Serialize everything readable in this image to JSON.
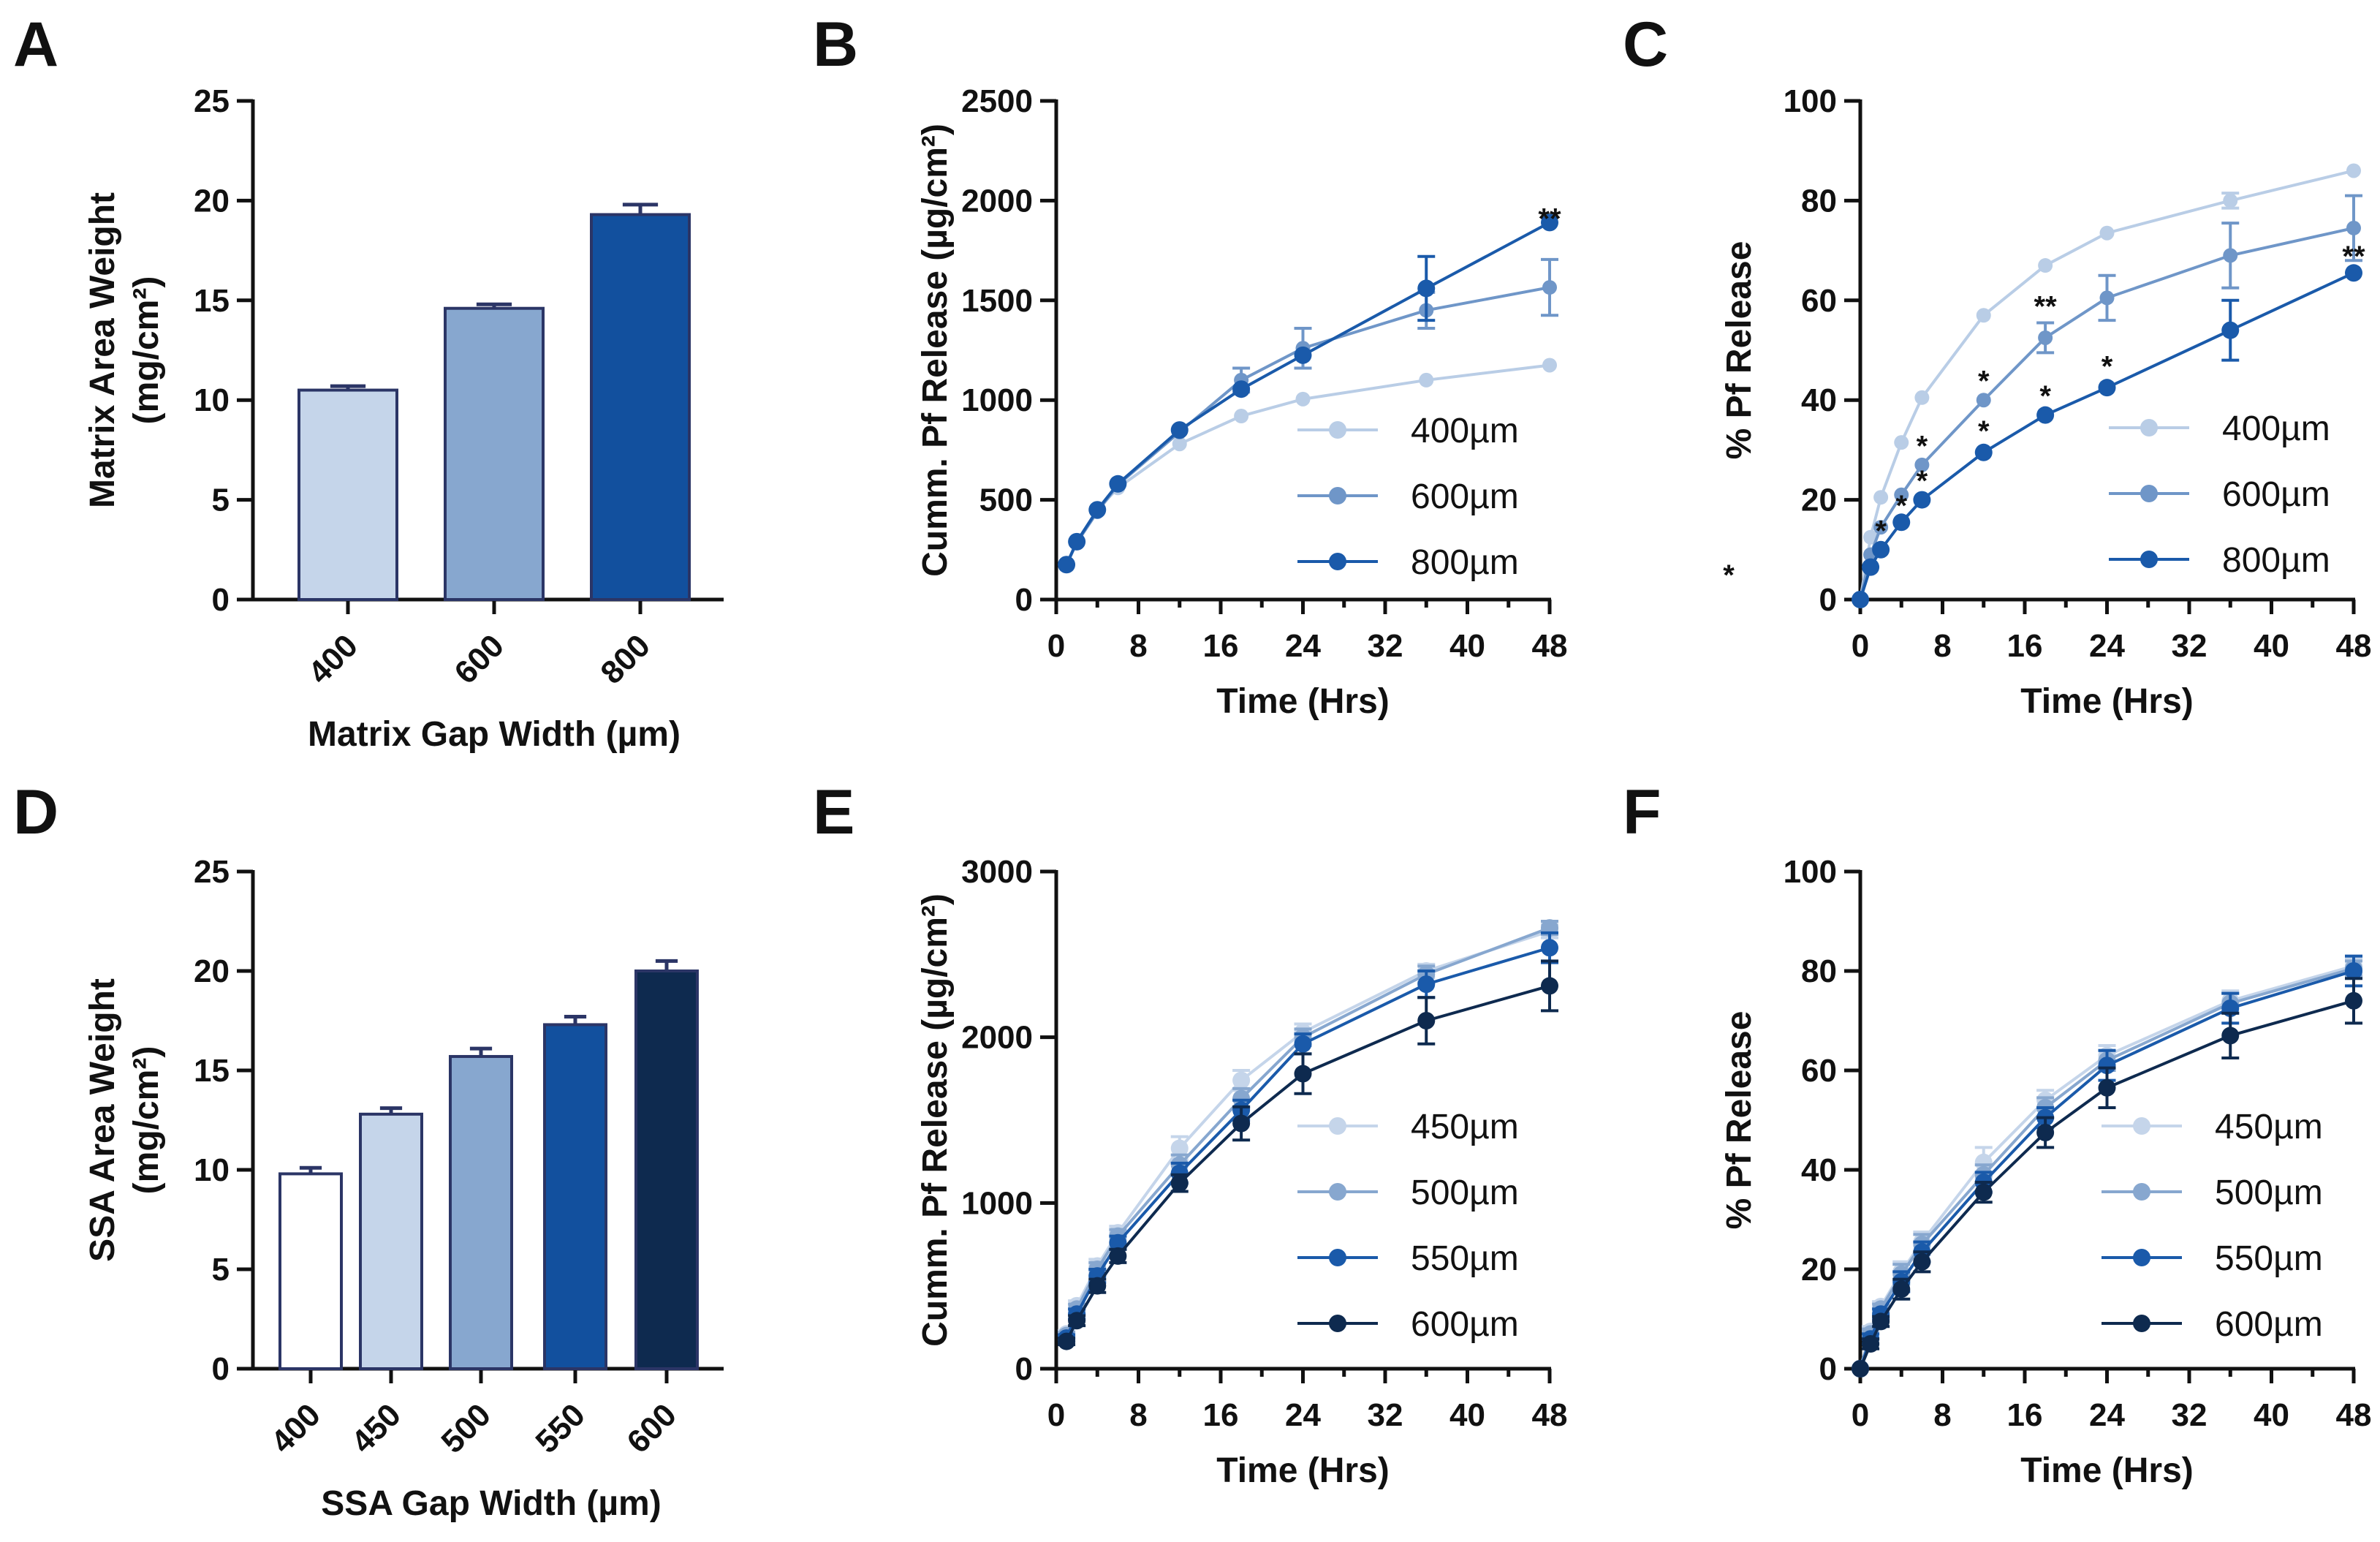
{
  "chart_data": [
    {
      "panel": "A",
      "type": "bar",
      "xlabel": "Matrix Gap Width (µm)",
      "ylabel": "Matrix Area Weight",
      "ylabel2": "(mg/cm²)",
      "ylim": [
        0,
        25
      ],
      "yticks": [
        "0",
        "5",
        "10",
        "15",
        "20",
        "25"
      ],
      "categories": [
        "400",
        "600",
        "800"
      ],
      "values": [
        10.5,
        14.6,
        19.3
      ],
      "errors": [
        0.2,
        0.2,
        0.5
      ],
      "colors": [
        "#c5d5ea",
        "#87a7cf",
        "#12509e"
      ]
    },
    {
      "panel": "B",
      "type": "line",
      "xlabel": "Time (Hrs)",
      "ylabel": "Cumm. Pf  Release (µg/cm²)",
      "ylim": [
        0,
        2500
      ],
      "yticks": [
        "0",
        "500",
        "1000",
        "1500",
        "2000",
        "2500"
      ],
      "xlim": [
        0,
        48
      ],
      "xticks": [
        "0",
        "8",
        "16",
        "24",
        "32",
        "40",
        "48"
      ],
      "x": [
        1,
        2,
        4,
        6,
        12,
        18,
        24,
        36,
        48
      ],
      "series": [
        {
          "name": "400µm",
          "color": "#b9cde6",
          "values": [
            170,
            290,
            450,
            560,
            780,
            920,
            1005,
            1100,
            1175
          ],
          "errors": [
            0,
            0,
            0,
            0,
            0,
            0,
            0,
            0,
            0
          ]
        },
        {
          "name": "600µm",
          "color": "#6f96c8",
          "values": [
            175,
            285,
            440,
            575,
            840,
            1100,
            1260,
            1450,
            1565
          ],
          "errors": [
            0,
            0,
            0,
            0,
            0,
            60,
            100,
            90,
            140
          ]
        },
        {
          "name": "800µm",
          "color": "#1a5aaa",
          "values": [
            175,
            290,
            450,
            580,
            850,
            1055,
            1225,
            1560,
            1890
          ],
          "errors": [
            0,
            0,
            0,
            0,
            0,
            0,
            0,
            160,
            0
          ]
        }
      ],
      "annotations": [
        {
          "x": 48,
          "y": 1890,
          "text": "**"
        }
      ]
    },
    {
      "panel": "C",
      "type": "line",
      "xlabel": "Time (Hrs)",
      "ylabel": "% Pf Release",
      "ylim": [
        0,
        100
      ],
      "yticks": [
        "0",
        "20",
        "40",
        "60",
        "80",
        "100"
      ],
      "xlim": [
        0,
        48
      ],
      "xticks": [
        "0",
        "8",
        "16",
        "24",
        "32",
        "40",
        "48"
      ],
      "x": [
        0,
        1,
        2,
        4,
        6,
        12,
        18,
        24,
        36,
        48
      ],
      "series": [
        {
          "name": "400µm",
          "color": "#b9cde6",
          "values": [
            0,
            12.5,
            20.5,
            31.5,
            40.5,
            57,
            67,
            73.5,
            80,
            86
          ],
          "errors": [
            0,
            0,
            0,
            0,
            0,
            0,
            0,
            0,
            1.5,
            0
          ]
        },
        {
          "name": "600µm",
          "color": "#6f96c8",
          "values": [
            0,
            9,
            14.5,
            21,
            27,
            40,
            52.5,
            60.5,
            69,
            74.5
          ],
          "errors": [
            0,
            0,
            0,
            0,
            0,
            0,
            3,
            4.5,
            6.5,
            6.5
          ]
        },
        {
          "name": "800µm",
          "color": "#1a5aaa",
          "values": [
            0,
            6.5,
            10,
            15.5,
            20,
            29.5,
            37,
            42.5,
            54,
            65.5
          ],
          "errors": [
            0,
            0,
            0,
            0,
            0,
            0,
            0,
            0,
            6,
            0
          ]
        }
      ],
      "annotations": [
        {
          "x": 2,
          "y": 13,
          "text": "*"
        },
        {
          "x": 4,
          "y": 18,
          "text": "*"
        },
        {
          "x": 6,
          "y": 23,
          "text": "*"
        },
        {
          "x": 6,
          "y": 30,
          "text": "*"
        },
        {
          "x": 12,
          "y": 33,
          "text": "*"
        },
        {
          "x": 12,
          "y": 43,
          "text": "*"
        },
        {
          "x": 18,
          "y": 40,
          "text": "*"
        },
        {
          "x": 18,
          "y": 58,
          "text": "**"
        },
        {
          "x": 24,
          "y": 46,
          "text": "*"
        },
        {
          "x": 48,
          "y": 68,
          "text": "**"
        }
      ],
      "side_mark": "*"
    },
    {
      "panel": "D",
      "type": "bar",
      "xlabel": "SSA Gap Width (µm)",
      "ylabel": "SSA Area Weight",
      "ylabel2": "(mg/cm²)",
      "ylim": [
        0,
        25
      ],
      "yticks": [
        "0",
        "5",
        "10",
        "15",
        "20",
        "25"
      ],
      "categories": [
        "400",
        "450",
        "500",
        "550",
        "600"
      ],
      "values": [
        9.8,
        12.8,
        15.7,
        17.3,
        20.0
      ],
      "errors": [
        0.3,
        0.3,
        0.4,
        0.4,
        0.5
      ],
      "colors": [
        "#ffffff",
        "#c5d5ea",
        "#87a7cf",
        "#12509e",
        "#0e2a4f"
      ]
    },
    {
      "panel": "E",
      "type": "line",
      "xlabel": "Time  (Hrs)",
      "ylabel": "Cumm. Pf  Release (µg/cm²)",
      "ylim": [
        0,
        3000
      ],
      "yticks": [
        "0",
        "1000",
        "2000",
        "3000"
      ],
      "xlim": [
        0,
        48
      ],
      "xticks": [
        "0",
        "8",
        "16",
        "24",
        "32",
        "40",
        "48"
      ],
      "x": [
        1,
        2,
        4,
        6,
        12,
        18,
        24,
        36,
        48
      ],
      "series": [
        {
          "name": "450µm",
          "color": "#c5d5ea",
          "values": [
            210,
            380,
            620,
            820,
            1330,
            1740,
            2030,
            2400,
            2640
          ],
          "errors": [
            20,
            30,
            40,
            40,
            70,
            60,
            50,
            40,
            40
          ]
        },
        {
          "name": "500µm",
          "color": "#87a7cf",
          "values": [
            200,
            360,
            600,
            800,
            1230,
            1630,
            2000,
            2380,
            2660
          ],
          "errors": [
            20,
            30,
            40,
            40,
            60,
            60,
            50,
            50,
            40
          ]
        },
        {
          "name": "550µm",
          "color": "#1a5aaa",
          "values": [
            185,
            330,
            560,
            760,
            1180,
            1560,
            1960,
            2320,
            2540
          ],
          "errors": [
            20,
            30,
            40,
            40,
            60,
            60,
            60,
            80,
            90
          ]
        },
        {
          "name": "600µm",
          "color": "#0e2a4f",
          "values": [
            165,
            290,
            500,
            680,
            1120,
            1480,
            1780,
            2100,
            2310
          ],
          "errors": [
            20,
            30,
            40,
            40,
            50,
            100,
            120,
            140,
            150
          ]
        }
      ]
    },
    {
      "panel": "F",
      "type": "line",
      "xlabel": "Time  (Hrs)",
      "ylabel": "% Pf  Release",
      "ylim": [
        0,
        100
      ],
      "yticks": [
        "0",
        "20",
        "40",
        "60",
        "80",
        "100"
      ],
      "xlim": [
        0,
        48
      ],
      "xticks": [
        "0",
        "8",
        "16",
        "24",
        "32",
        "40",
        "48"
      ],
      "x": [
        0,
        1,
        2,
        4,
        6,
        12,
        18,
        24,
        36,
        48
      ],
      "series": [
        {
          "name": "450µm",
          "color": "#c5d5ea",
          "values": [
            0,
            7.5,
            12.5,
            19.5,
            25.5,
            41.5,
            54,
            63,
            74,
            81
          ],
          "errors": [
            0,
            1,
            1,
            2,
            2,
            3,
            2,
            2,
            2,
            1.5
          ]
        },
        {
          "name": "500µm",
          "color": "#87a7cf",
          "values": [
            0,
            7,
            12,
            19,
            25,
            39,
            52.5,
            62,
            73.5,
            80.5
          ],
          "errors": [
            0,
            1,
            1,
            2,
            2,
            2,
            2,
            2,
            2,
            1.5
          ]
        },
        {
          "name": "550µm",
          "color": "#1a5aaa",
          "values": [
            0,
            6,
            11,
            17.5,
            23.5,
            37.5,
            50.5,
            61,
            72.5,
            80
          ],
          "errors": [
            0,
            1,
            1,
            2,
            2,
            2,
            2,
            3,
            3,
            3
          ]
        },
        {
          "name": "600µm",
          "color": "#0e2a4f",
          "values": [
            0,
            5,
            9.5,
            16,
            21.5,
            35.5,
            47.5,
            56.5,
            67,
            74
          ],
          "errors": [
            0,
            1,
            1,
            2,
            2,
            2,
            3,
            4,
            4.5,
            4.5
          ]
        }
      ]
    }
  ]
}
